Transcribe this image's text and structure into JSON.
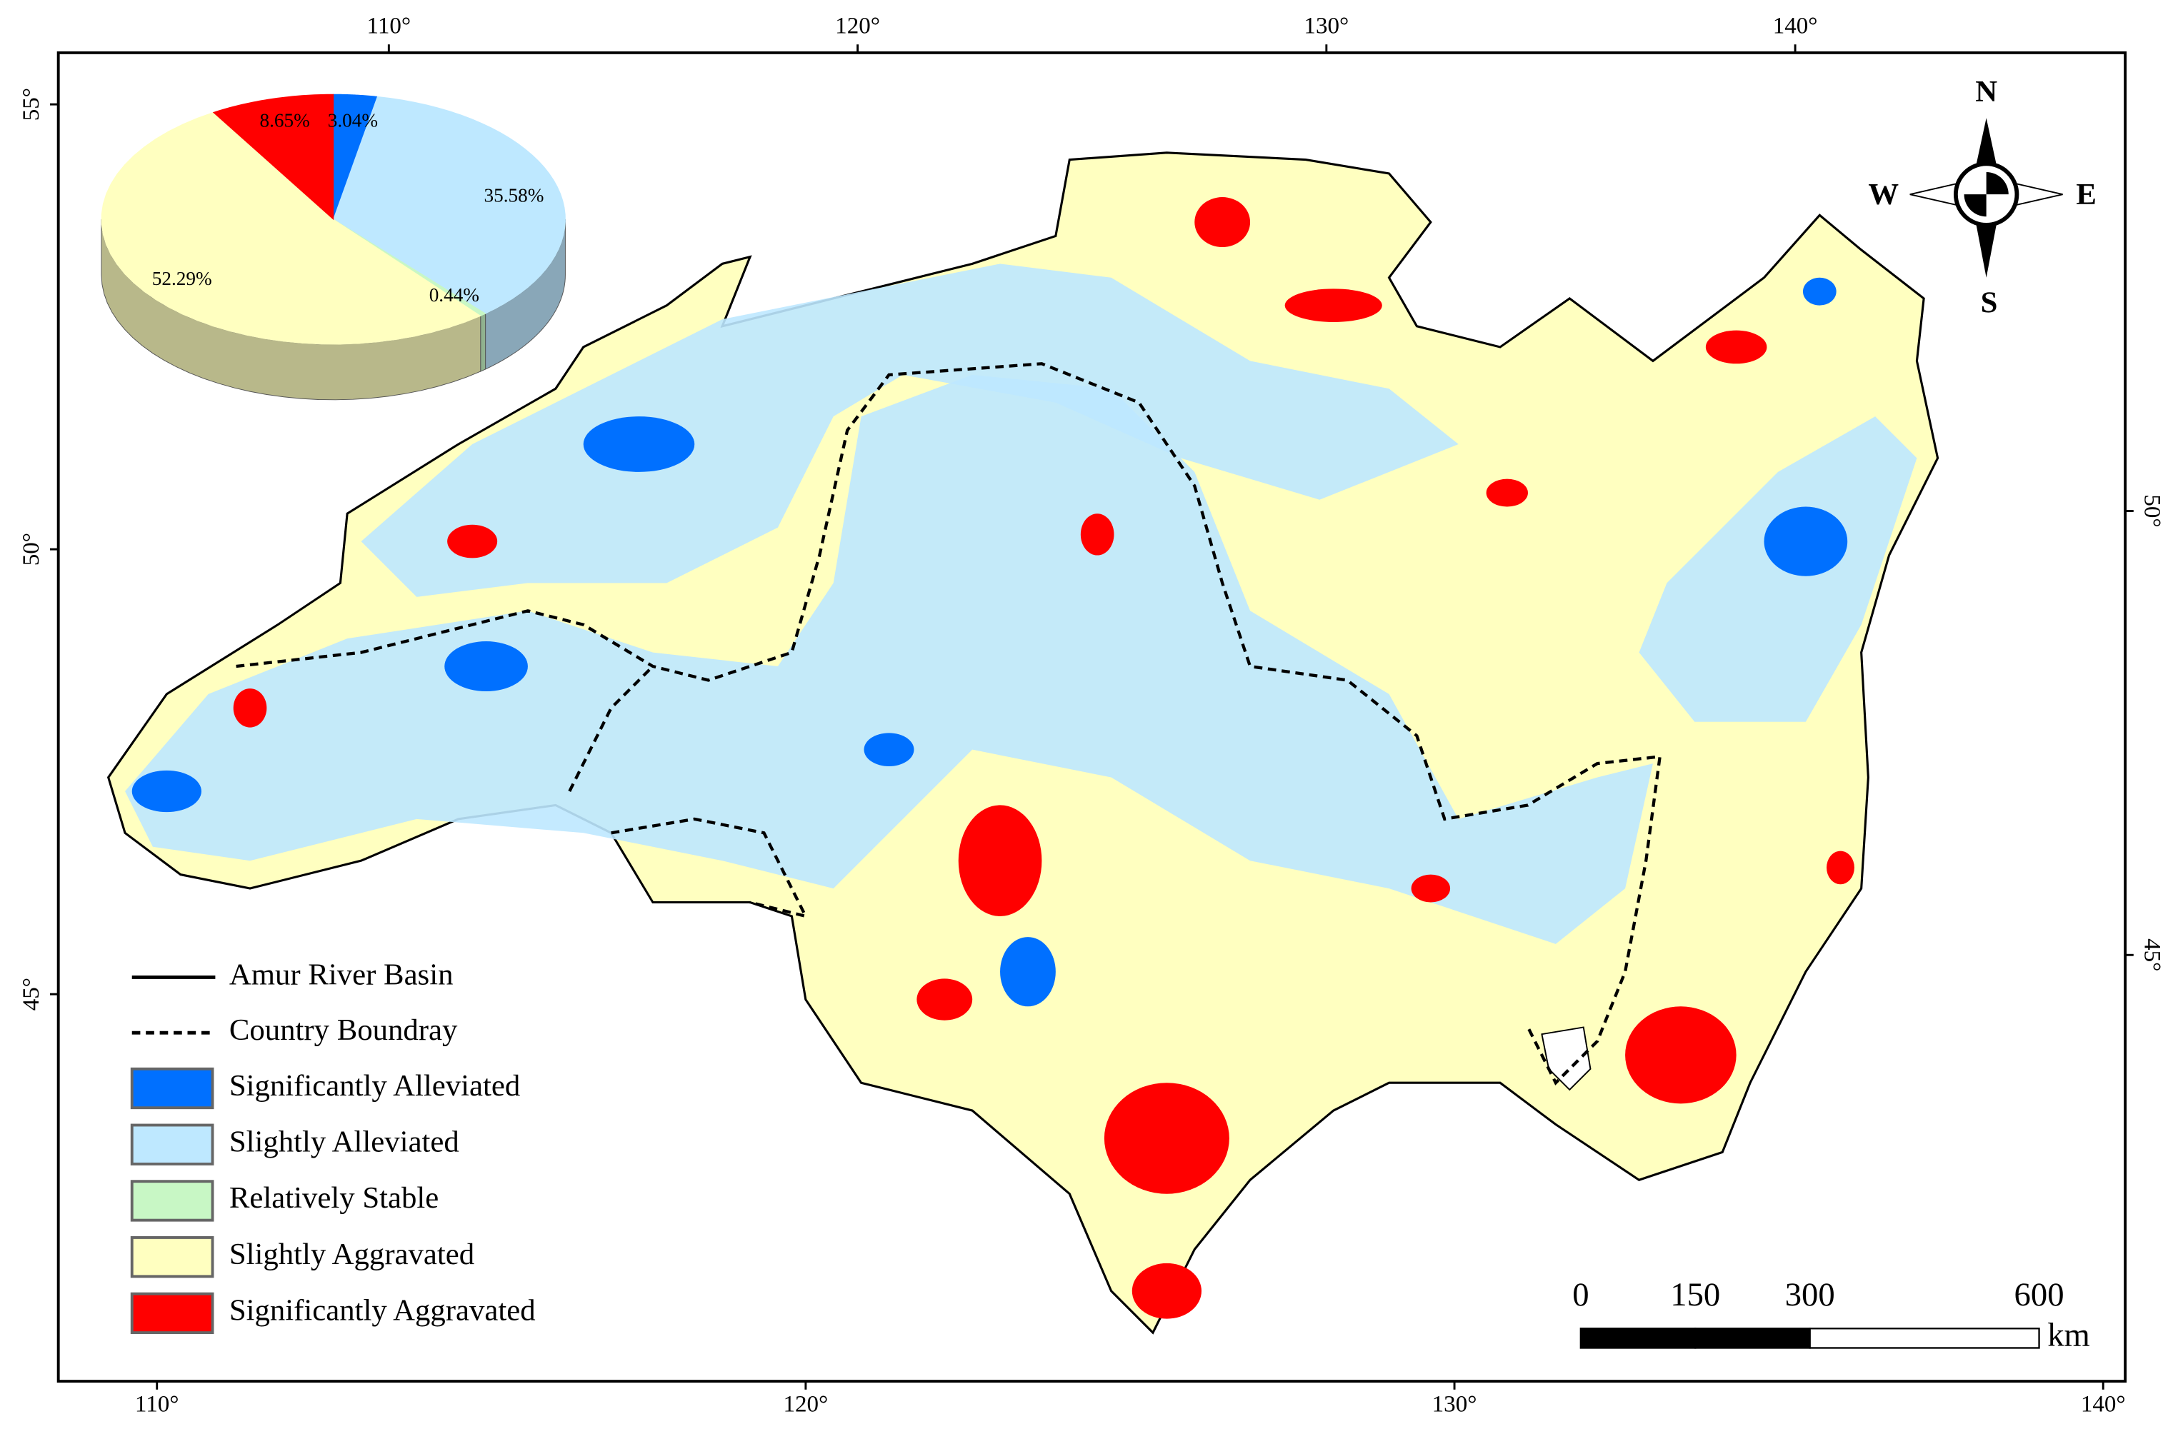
{
  "chart_data": {
    "type": "pie",
    "categories": [
      "Significantly Alleviated",
      "Slightly Alleviated",
      "Relatively Stable",
      "Slightly  Aggravated",
      "Significantly  Aggravated"
    ],
    "colors": [
      "#0070ff",
      "#bee8ff",
      "#c8f7c5",
      "#ffffc0",
      "#ff0000"
    ],
    "values": [
      3.04,
      35.58,
      0.44,
      52.29,
      8.65
    ],
    "value_labels": [
      "3.04%",
      "35.58%",
      "0.44%",
      "52.29%",
      "8.65%"
    ]
  },
  "map": {
    "top_axis": {
      "lim": [
        102.95,
        147.04
      ],
      "ticks": [
        {
          "value": 110,
          "label": "110°"
        },
        {
          "value": 120,
          "label": "120°"
        },
        {
          "value": 130,
          "label": "130°"
        },
        {
          "value": 140,
          "label": "140°"
        }
      ]
    },
    "bottom_axis": {
      "lim": [
        108.48,
        140.34
      ],
      "ticks": [
        {
          "value": 110,
          "label": "110°"
        },
        {
          "value": 120,
          "label": "120°"
        },
        {
          "value": 130,
          "label": "130°"
        },
        {
          "value": 140,
          "label": "140°"
        }
      ]
    },
    "left_axis": {
      "lim": [
        40.65,
        55.58
      ],
      "ticks": [
        {
          "value": 55,
          "label": "55°"
        },
        {
          "value": 50,
          "label": "50°"
        },
        {
          "value": 45,
          "label": "45°"
        }
      ]
    },
    "right_axis": {
      "lim": [
        40.2,
        55.16
      ],
      "ticks": [
        {
          "value": 50,
          "label": "50°"
        },
        {
          "value": 45,
          "label": "45°"
        }
      ]
    },
    "legend_lines": [
      "Amur River Basin",
      "Country Boundray"
    ],
    "compass": {
      "n": "N",
      "e": "E",
      "s": "S",
      "w": "W"
    },
    "scale_bar": {
      "ticks": [
        0,
        150,
        300,
        600
      ],
      "unit": "km"
    }
  }
}
